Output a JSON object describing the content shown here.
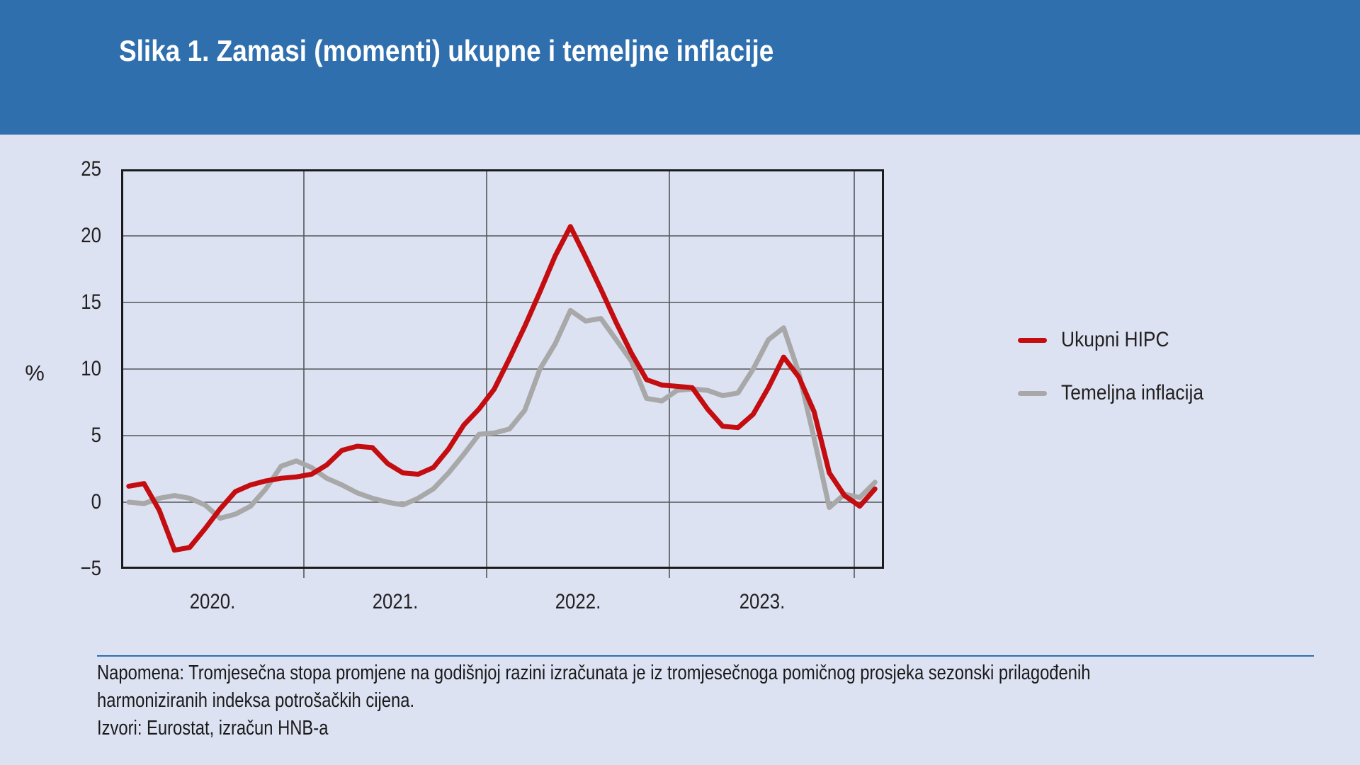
{
  "banner": {
    "title": "Slika 1. Zamasi (momenti) ukupne i temeljne inflacije",
    "bg_color": "#2F6FAE"
  },
  "chart_data": {
    "type": "line",
    "title": "Slika 1. Zamasi (momenti) ukupne i temeljne inflacije",
    "ylabel": "%",
    "ylim": [
      -5,
      25
    ],
    "yticks": [
      25,
      20,
      15,
      10,
      5,
      0,
      -5
    ],
    "grid": true,
    "legend_position": "right",
    "x_frequency": "monthly",
    "x_start": "2020-01",
    "x_end": "2024-02",
    "x_year_boundaries": [
      2020,
      2021,
      2022,
      2023,
      2024
    ],
    "categories_years": [
      "2020.",
      "2021.",
      "2022.",
      "2023."
    ],
    "series": [
      {
        "name": "Ukupni HIPC",
        "color": "#C30D10",
        "values": [
          1.2,
          1.4,
          -0.6,
          -3.6,
          -3.4,
          -2.0,
          -0.5,
          0.8,
          1.3,
          1.6,
          1.8,
          1.9,
          2.1,
          2.8,
          3.9,
          4.2,
          4.1,
          2.9,
          2.2,
          2.1,
          2.6,
          4.0,
          5.8,
          7.0,
          8.5,
          10.8,
          13.2,
          15.8,
          18.5,
          20.7,
          18.4,
          16.0,
          13.5,
          11.2,
          9.2,
          8.8,
          8.7,
          8.6,
          7.0,
          5.7,
          5.6,
          6.6,
          8.6,
          10.9,
          9.4,
          6.8,
          2.2,
          0.5,
          -0.3,
          1.0
        ]
      },
      {
        "name": "Temeljna inflacija",
        "color": "#A8A8A8",
        "values": [
          0.0,
          -0.1,
          0.3,
          0.5,
          0.3,
          -0.2,
          -1.2,
          -0.9,
          -0.3,
          1.0,
          2.7,
          3.1,
          2.6,
          1.8,
          1.3,
          0.7,
          0.3,
          0.0,
          -0.2,
          0.3,
          1.0,
          2.2,
          3.6,
          5.1,
          5.2,
          5.5,
          6.9,
          10.0,
          11.9,
          14.4,
          13.6,
          13.8,
          12.2,
          10.6,
          7.8,
          7.6,
          8.4,
          8.5,
          8.4,
          8.0,
          8.2,
          10.0,
          12.2,
          13.1,
          9.7,
          4.8,
          -0.4,
          0.6,
          0.35,
          1.5
        ]
      }
    ]
  },
  "axis": {
    "ytick_labels": [
      "25",
      "20",
      "15",
      "10",
      "5",
      "0",
      "−5"
    ],
    "xtick_labels": [
      "2020.",
      "2021.",
      "2022.",
      "2023."
    ],
    "ylabel": "%",
    "grid_color": "#55565B",
    "frame_color": "#1B1B1D"
  },
  "legend": {
    "items": [
      {
        "label": "Ukupni HIPC",
        "color": "#C30D10"
      },
      {
        "label": "Temeljna inflacija",
        "color": "#A8A8A8"
      }
    ]
  },
  "footnote": {
    "note_lines": [
      "Napomena: Tromjesečna stopa promjene na godišnjoj razini izračunata je iz tromjesečnoga pomičnog prosjeka sezonski prilagođenih",
      "harmoniziranih indeksa potrošačkih cijena."
    ],
    "sources": "Izvori: Eurostat, izračun HNB-a"
  }
}
